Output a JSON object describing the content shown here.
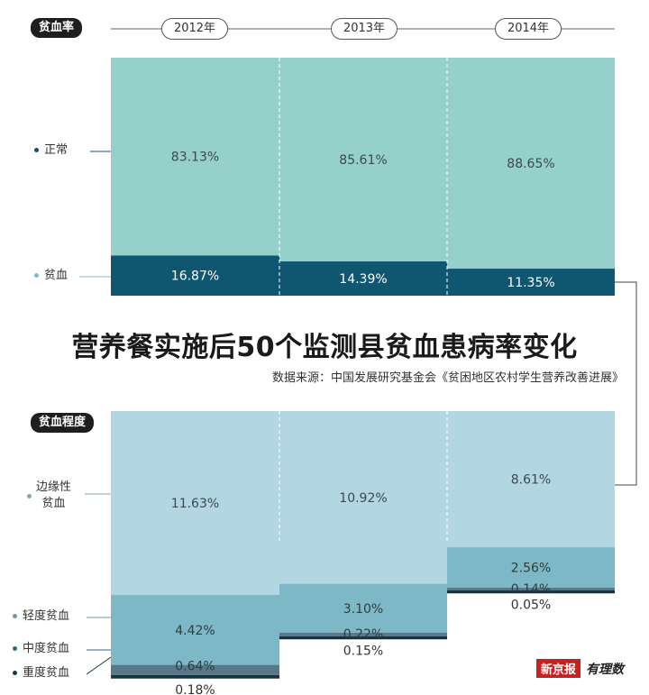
{
  "badges": {
    "rate": "贫血率",
    "degree": "贫血程度"
  },
  "years": [
    "2012年",
    "2013年",
    "2014年"
  ],
  "title": "营养餐实施后50个监测县贫血患病率变化",
  "source": "数据来源：中国发展研究基金会《贫困地区农村学生营养改善进展》",
  "logo": {
    "news": "新京报",
    "data": "有理数"
  },
  "chart_data": [
    {
      "type": "bar",
      "stacked": true,
      "categories": [
        "2012年",
        "2013年",
        "2014年"
      ],
      "series": [
        {
          "name": "正常",
          "values": [
            83.13,
            85.61,
            88.65
          ],
          "labels": [
            "83.13%",
            "85.61%",
            "88.65%"
          ],
          "color": "#96d0cb"
        },
        {
          "name": "贫血",
          "values": [
            16.87,
            14.39,
            11.35
          ],
          "labels": [
            "16.87%",
            "14.39%",
            "11.35%"
          ],
          "color": "#0f5770"
        }
      ],
      "ylim": [
        0,
        100
      ]
    },
    {
      "type": "bar",
      "stacked": true,
      "categories": [
        "2012年",
        "2013年",
        "2014年"
      ],
      "series": [
        {
          "name": "边缘性贫血",
          "display_lines": [
            "边缘性",
            "贫血"
          ],
          "values": [
            11.63,
            10.92,
            8.61
          ],
          "labels": [
            "11.63%",
            "10.92%",
            "8.61%"
          ],
          "color": "#b3d6e3"
        },
        {
          "name": "轻度贫血",
          "values": [
            4.42,
            3.1,
            2.56
          ],
          "labels": [
            "4.42%",
            "3.10%",
            "2.56%"
          ],
          "color": "#7db8c6"
        },
        {
          "name": "中度贫血",
          "values": [
            0.64,
            0.22,
            0.14
          ],
          "labels": [
            "0.64%",
            "0.22%",
            "0.14%"
          ],
          "color": "#58798a"
        },
        {
          "name": "重度贫血",
          "values": [
            0.18,
            0.15,
            0.05
          ],
          "labels": [
            "0.18%",
            "0.15%",
            "0.05%"
          ],
          "color": "#163544"
        }
      ]
    }
  ]
}
